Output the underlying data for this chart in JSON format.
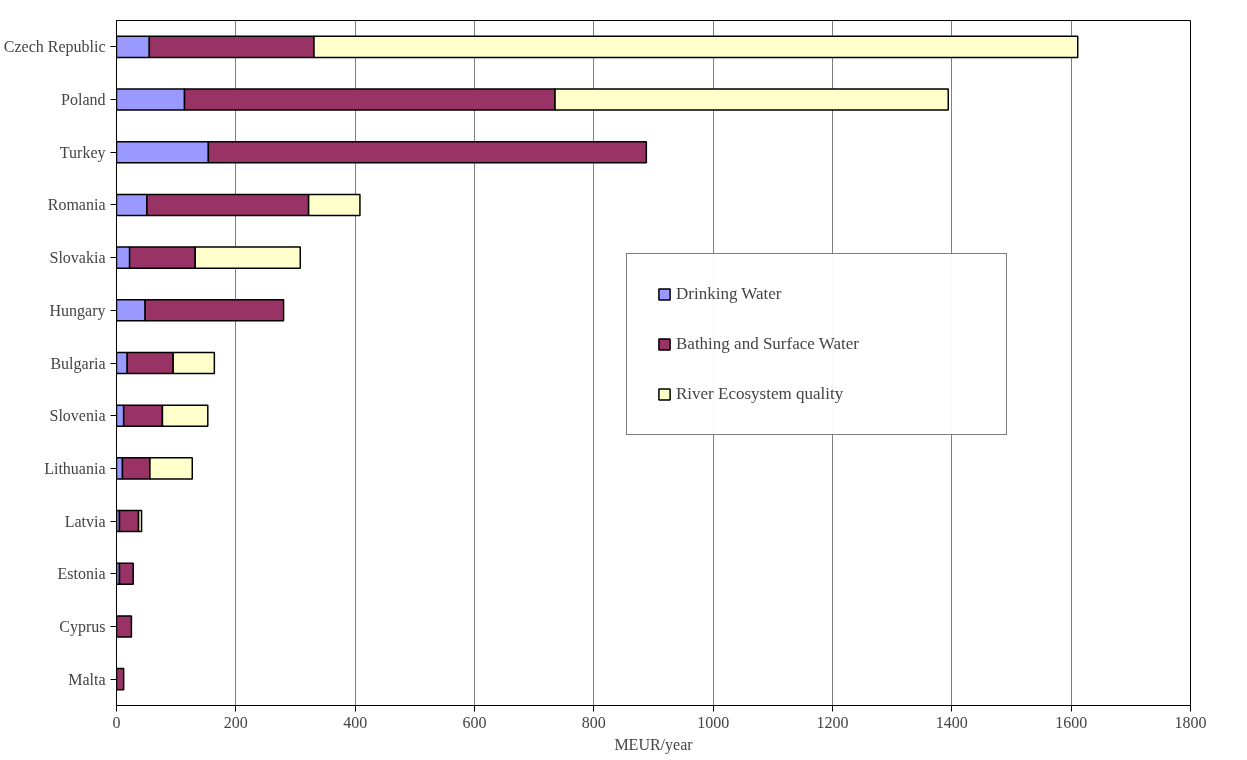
{
  "chart_data": {
    "type": "bar",
    "orientation": "horizontal",
    "stacked": true,
    "xlabel": "MEUR/year",
    "categories": [
      "Czech Republic",
      "Poland",
      "Turkey",
      "Romania",
      "Slovakia",
      "Hungary",
      "Bulgaria",
      "Slovenia",
      "Lithuania",
      "Latvia",
      "Estonia",
      "Cyprus",
      "Malta"
    ],
    "series": [
      {
        "name": "Drinking Water",
        "color": "#9999ff",
        "values": [
          55,
          114,
          154,
          51,
          22,
          48,
          18,
          12,
          10,
          5,
          5,
          null,
          null
        ]
      },
      {
        "name": "Bathing and Surface Water",
        "color": "#993366",
        "values": [
          276,
          621,
          734,
          271,
          110,
          232,
          77,
          65,
          46,
          32,
          23,
          25,
          12
        ]
      },
      {
        "name": "River Ecosystem quality",
        "color": "#ffffcc",
        "values": [
          1280,
          659,
          null,
          86,
          176,
          null,
          69,
          76,
          71,
          5,
          null,
          null,
          null
        ]
      }
    ],
    "xlim": [
      0,
      1800
    ],
    "xticks": [
      0,
      200,
      400,
      600,
      800,
      1000,
      1200,
      1400,
      1600,
      1800
    ],
    "grid": "x",
    "legend": "right"
  }
}
